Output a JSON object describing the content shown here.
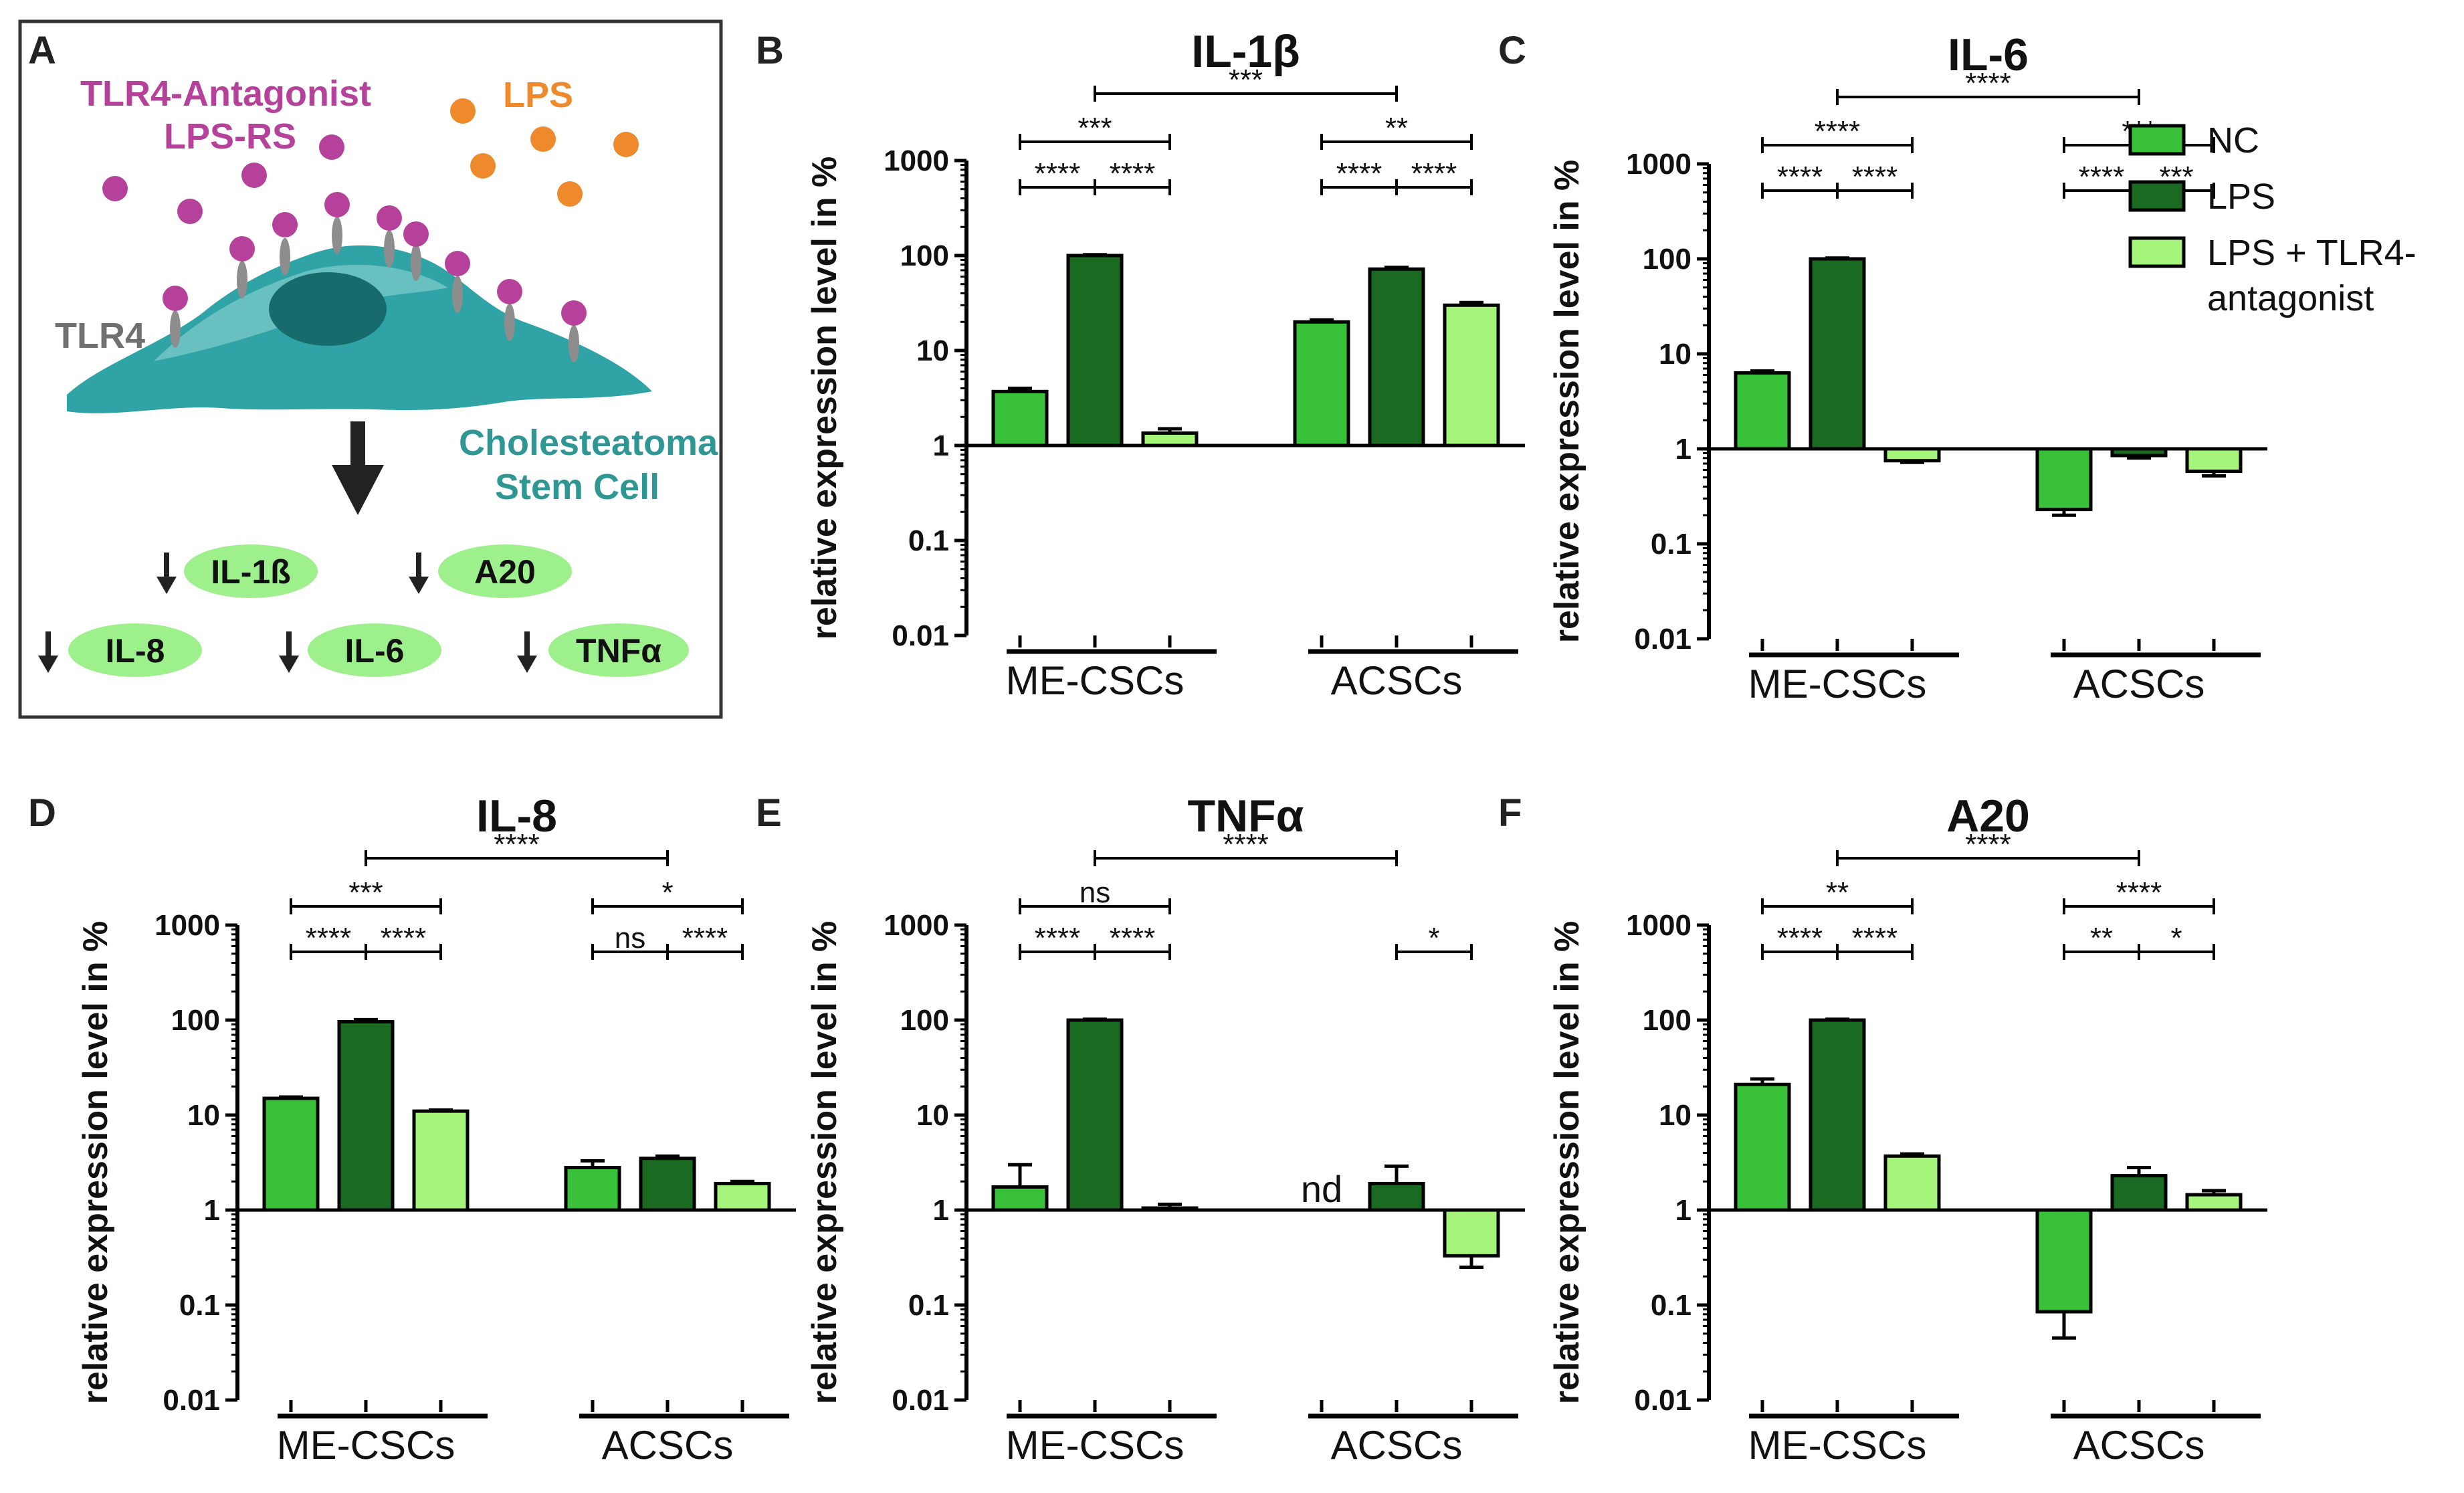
{
  "colors": {
    "nc": "#39c13a",
    "lps": "#1a6b21",
    "lps_tlr4": "#a5f57a",
    "axis": "#000000"
  },
  "legend": [
    {
      "key": "nc",
      "label": "NC"
    },
    {
      "key": "lps",
      "label": "LPS"
    },
    {
      "key": "lps_tlr4",
      "label_line1": "LPS + TLR4-",
      "label_line2": "antagonist"
    }
  ],
  "schematic": {
    "letter": "A",
    "antagonist_line1": "TLR4-Antagonist",
    "antagonist_line2": "LPS-RS",
    "lps": "LPS",
    "receptor": "TLR4",
    "cell_line1": "Cholesteatoma",
    "cell_line2": "Stem Cell",
    "genes": [
      "IL-1ß",
      "A20",
      "IL-8",
      "IL-6",
      "TNFα"
    ]
  },
  "chart_data": [
    {
      "panel": "B",
      "type": "bar",
      "title": "IL-1β",
      "yscale": "log",
      "ylabel": "relative expression level in %",
      "ylim": [
        0.01,
        1000
      ],
      "yticks": [
        "0.01",
        "0.1",
        "1",
        "10",
        "100",
        "1000"
      ],
      "groups": [
        "ME-CSCs",
        "ACSCs"
      ],
      "series": [
        {
          "name": "NC",
          "values": [
            3.7,
            20
          ],
          "errors": [
            4.0,
            21
          ]
        },
        {
          "name": "LPS",
          "values": [
            100,
            72
          ],
          "errors": [
            102,
            75
          ]
        },
        {
          "name": "LPS + TLR4-antagonist",
          "values": [
            1.35,
            30
          ],
          "errors": [
            1.5,
            32
          ]
        }
      ],
      "significance": [
        {
          "from": [
            0,
            "NC"
          ],
          "to": [
            0,
            "LPS"
          ],
          "label": "****"
        },
        {
          "from": [
            0,
            "LPS"
          ],
          "to": [
            0,
            "LPS + TLR4-antagonist"
          ],
          "label": "****"
        },
        {
          "from": [
            0,
            "NC"
          ],
          "to": [
            0,
            "LPS + TLR4-antagonist"
          ],
          "label": "***"
        },
        {
          "from": [
            1,
            "NC"
          ],
          "to": [
            1,
            "LPS"
          ],
          "label": "****"
        },
        {
          "from": [
            1,
            "LPS"
          ],
          "to": [
            1,
            "LPS + TLR4-antagonist"
          ],
          "label": "****"
        },
        {
          "from": [
            1,
            "NC"
          ],
          "to": [
            1,
            "LPS + TLR4-antagonist"
          ],
          "label": "**"
        },
        {
          "from": [
            0,
            "LPS"
          ],
          "to": [
            1,
            "LPS"
          ],
          "label": "***"
        }
      ]
    },
    {
      "panel": "C",
      "type": "bar",
      "title": "IL-6",
      "yscale": "log",
      "ylabel": "relative expression level in %",
      "ylim": [
        0.01,
        1000
      ],
      "yticks": [
        "0.01",
        "0.1",
        "1",
        "10",
        "100",
        "1000"
      ],
      "groups": [
        "ME-CSCs",
        "ACSCs"
      ],
      "series": [
        {
          "name": "NC",
          "values": [
            6.3,
            0.23
          ],
          "errors": [
            6.6,
            0.2
          ]
        },
        {
          "name": "LPS",
          "values": [
            100,
            0.85
          ],
          "errors": [
            102,
            0.8
          ]
        },
        {
          "name": "LPS + TLR4-antagonist",
          "values": [
            0.75,
            0.58
          ],
          "errors": [
            0.72,
            0.52
          ]
        }
      ],
      "significance": [
        {
          "from": [
            0,
            "NC"
          ],
          "to": [
            0,
            "LPS"
          ],
          "label": "****"
        },
        {
          "from": [
            0,
            "LPS"
          ],
          "to": [
            0,
            "LPS + TLR4-antagonist"
          ],
          "label": "****"
        },
        {
          "from": [
            0,
            "NC"
          ],
          "to": [
            0,
            "LPS + TLR4-antagonist"
          ],
          "label": "****"
        },
        {
          "from": [
            1,
            "NC"
          ],
          "to": [
            1,
            "LPS"
          ],
          "label": "****"
        },
        {
          "from": [
            1,
            "LPS"
          ],
          "to": [
            1,
            "LPS + TLR4-antagonist"
          ],
          "label": "***"
        },
        {
          "from": [
            1,
            "NC"
          ],
          "to": [
            1,
            "LPS + TLR4-antagonist"
          ],
          "label": "***"
        },
        {
          "from": [
            0,
            "LPS"
          ],
          "to": [
            1,
            "LPS"
          ],
          "label": "****"
        }
      ]
    },
    {
      "panel": "D",
      "type": "bar",
      "title": "IL-8",
      "yscale": "log",
      "ylabel": "relative expression level in %",
      "ylim": [
        0.01,
        1000
      ],
      "yticks": [
        "0.01",
        "0.1",
        "1",
        "10",
        "100",
        "1000"
      ],
      "groups": [
        "ME-CSCs",
        "ACSCs"
      ],
      "series": [
        {
          "name": "NC",
          "values": [
            15,
            2.8
          ],
          "errors": [
            15.5,
            3.3
          ]
        },
        {
          "name": "LPS",
          "values": [
            96,
            3.5
          ],
          "errors": [
            101,
            3.7
          ]
        },
        {
          "name": "LPS + TLR4-antagonist",
          "values": [
            11,
            1.9
          ],
          "errors": [
            11.3,
            2.0
          ]
        }
      ],
      "significance": [
        {
          "from": [
            0,
            "NC"
          ],
          "to": [
            0,
            "LPS"
          ],
          "label": "****"
        },
        {
          "from": [
            0,
            "LPS"
          ],
          "to": [
            0,
            "LPS + TLR4-antagonist"
          ],
          "label": "****"
        },
        {
          "from": [
            0,
            "NC"
          ],
          "to": [
            0,
            "LPS + TLR4-antagonist"
          ],
          "label": "***"
        },
        {
          "from": [
            1,
            "NC"
          ],
          "to": [
            1,
            "LPS"
          ],
          "label": "ns"
        },
        {
          "from": [
            1,
            "LPS"
          ],
          "to": [
            1,
            "LPS + TLR4-antagonist"
          ],
          "label": "****"
        },
        {
          "from": [
            1,
            "NC"
          ],
          "to": [
            1,
            "LPS + TLR4-antagonist"
          ],
          "label": "*"
        },
        {
          "from": [
            0,
            "LPS"
          ],
          "to": [
            1,
            "LPS"
          ],
          "label": "****"
        }
      ]
    },
    {
      "panel": "E",
      "type": "bar",
      "title": "TNFα",
      "yscale": "log",
      "ylabel": "relative expression level in %",
      "ylim": [
        0.01,
        1000
      ],
      "yticks": [
        "0.01",
        "0.1",
        "1",
        "10",
        "100",
        "1000"
      ],
      "groups": [
        "ME-CSCs",
        "ACSCs"
      ],
      "series": [
        {
          "name": "NC",
          "values": [
            1.75,
            null
          ],
          "errors": [
            3.0,
            null
          ]
        },
        {
          "name": "LPS",
          "values": [
            100,
            1.9
          ],
          "errors": [
            102,
            2.9
          ]
        },
        {
          "name": "LPS + TLR4-antagonist",
          "values": [
            1.05,
            0.33
          ],
          "errors": [
            1.15,
            0.25
          ]
        }
      ],
      "annotations": [
        {
          "group": 1,
          "series": "NC",
          "text": "nd"
        }
      ],
      "significance": [
        {
          "from": [
            0,
            "NC"
          ],
          "to": [
            0,
            "LPS"
          ],
          "label": "****"
        },
        {
          "from": [
            0,
            "LPS"
          ],
          "to": [
            0,
            "LPS + TLR4-antagonist"
          ],
          "label": "****"
        },
        {
          "from": [
            0,
            "NC"
          ],
          "to": [
            0,
            "LPS + TLR4-antagonist"
          ],
          "label": "ns"
        },
        {
          "from": [
            1,
            "LPS"
          ],
          "to": [
            1,
            "LPS + TLR4-antagonist"
          ],
          "label": "*"
        },
        {
          "from": [
            0,
            "LPS"
          ],
          "to": [
            1,
            "LPS"
          ],
          "label": "****"
        }
      ]
    },
    {
      "panel": "F",
      "type": "bar",
      "title": "A20",
      "yscale": "log",
      "ylabel": "relative expression level in %",
      "ylim": [
        0.01,
        1000
      ],
      "yticks": [
        "0.01",
        "0.1",
        "1",
        "10",
        "100",
        "1000"
      ],
      "groups": [
        "ME-CSCs",
        "ACSCs"
      ],
      "series": [
        {
          "name": "NC",
          "values": [
            21,
            0.085
          ],
          "errors": [
            24,
            0.045
          ]
        },
        {
          "name": "LPS",
          "values": [
            100,
            2.3
          ],
          "errors": [
            102,
            2.8
          ]
        },
        {
          "name": "LPS + TLR4-antagonist",
          "values": [
            3.7,
            1.45
          ],
          "errors": [
            3.9,
            1.6
          ]
        }
      ],
      "significance": [
        {
          "from": [
            0,
            "NC"
          ],
          "to": [
            0,
            "LPS"
          ],
          "label": "****"
        },
        {
          "from": [
            0,
            "LPS"
          ],
          "to": [
            0,
            "LPS + TLR4-antagonist"
          ],
          "label": "****"
        },
        {
          "from": [
            0,
            "NC"
          ],
          "to": [
            0,
            "LPS + TLR4-antagonist"
          ],
          "label": "**"
        },
        {
          "from": [
            1,
            "NC"
          ],
          "to": [
            1,
            "LPS"
          ],
          "label": "**"
        },
        {
          "from": [
            1,
            "LPS"
          ],
          "to": [
            1,
            "LPS + TLR4-antagonist"
          ],
          "label": "*"
        },
        {
          "from": [
            1,
            "NC"
          ],
          "to": [
            1,
            "LPS + TLR4-antagonist"
          ],
          "label": "****"
        },
        {
          "from": [
            0,
            "LPS"
          ],
          "to": [
            1,
            "LPS"
          ],
          "label": "****"
        }
      ]
    }
  ]
}
